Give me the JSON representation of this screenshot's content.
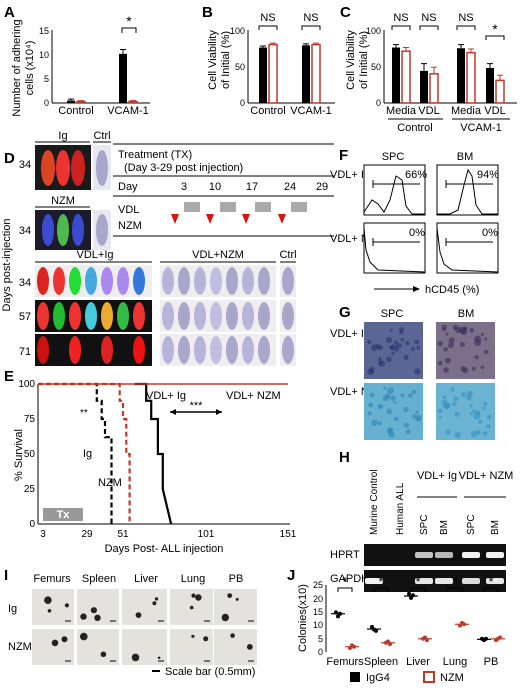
{
  "panels": {
    "A": {
      "letter": "A"
    },
    "B": {
      "letter": "B"
    },
    "C": {
      "letter": "C"
    },
    "D": {
      "letter": "D"
    },
    "E": {
      "letter": "E"
    },
    "F": {
      "letter": "F"
    },
    "G": {
      "letter": "G"
    },
    "H": {
      "letter": "H"
    },
    "I": {
      "letter": "I"
    },
    "J": {
      "letter": "J"
    }
  },
  "chart_data": [
    {
      "panel": "A",
      "type": "bar",
      "ylabel": "Number of adhering cells (x10⁴)",
      "ylim": [
        0,
        15
      ],
      "yticks": [
        0,
        5,
        10,
        15
      ],
      "categories": [
        "Control",
        "VCAM-1"
      ],
      "series": [
        {
          "color": "#000000",
          "values": [
            0.5,
            10.1
          ],
          "err": [
            0.3,
            0.9
          ]
        },
        {
          "color": "#c0392b",
          "values": [
            0.3,
            0.3
          ],
          "err": [
            0.2,
            0.2
          ]
        }
      ],
      "annotations": [
        "*"
      ]
    },
    {
      "panel": "B",
      "type": "bar",
      "ylabel": "Cell Viability of Initial (%)",
      "ylim": [
        0,
        100
      ],
      "yticks": [
        0,
        50,
        100
      ],
      "categories": [
        "Control",
        "VCAM-1"
      ],
      "series": [
        {
          "color": "#000000",
          "values": [
            76,
            79
          ],
          "err": [
            2,
            2
          ]
        },
        {
          "color": "#c0392b",
          "values": [
            80,
            80
          ],
          "err": [
            2,
            2
          ]
        }
      ],
      "annotations": [
        "NS",
        "NS"
      ]
    },
    {
      "panel": "C",
      "type": "bar",
      "ylabel": "Cell Viability of Initial (%)",
      "ylim": [
        0,
        100
      ],
      "yticks": [
        0,
        50,
        100
      ],
      "categories": [
        "Media",
        "VDL",
        "Media",
        "VDL"
      ],
      "groups": [
        "Control",
        "VCAM-1"
      ],
      "series": [
        {
          "color": "#000000",
          "values": [
            76,
            44,
            75,
            48
          ],
          "err": [
            4,
            10,
            5,
            6
          ]
        },
        {
          "color": "#c0392b",
          "values": [
            71,
            40,
            69,
            31
          ],
          "err": [
            5,
            9,
            5,
            7
          ]
        }
      ],
      "annotations": [
        "NS",
        "NS",
        "NS",
        "*"
      ]
    },
    {
      "panel": "E",
      "type": "line",
      "ylabel": "% Survival",
      "xlabel": "Days Post- ALL injection",
      "ylim": [
        0,
        100
      ],
      "yticks": [
        0,
        25,
        50,
        75,
        100
      ],
      "xticks": [
        3,
        29,
        51,
        101,
        151
      ],
      "series": [
        {
          "name": "Ig",
          "color": "#000000",
          "style": "dashed",
          "x": [
            0,
            35,
            35,
            38,
            38,
            40,
            40,
            44,
            44
          ],
          "y": [
            100,
            100,
            88,
            88,
            75,
            75,
            62,
            62,
            0
          ]
        },
        {
          "name": "NZM",
          "color": "#c0392b",
          "style": "dashed",
          "x": [
            0,
            49,
            49,
            51,
            51,
            53,
            53,
            55,
            55
          ],
          "y": [
            100,
            100,
            88,
            88,
            75,
            75,
            50,
            50,
            0
          ]
        },
        {
          "name": "VDL+Ig",
          "color": "#000000",
          "style": "solid",
          "x": [
            58,
            65,
            65,
            68,
            68,
            72,
            72,
            75,
            75,
            80
          ],
          "y": [
            100,
            100,
            88,
            88,
            75,
            75,
            50,
            50,
            25,
            0
          ]
        },
        {
          "name": "VDL+NZM",
          "color": "#c0392b",
          "style": "solid",
          "x": [
            0,
            151
          ],
          "y": [
            100,
            100
          ]
        }
      ],
      "annotations": [
        "**",
        "***"
      ],
      "labels": {
        "ig": "Ig",
        "nzm": "NZM",
        "vdl_ig": "VDL+ Ig",
        "vdl_nzm": "VDL+ NZM",
        "tx": "Tx"
      }
    },
    {
      "panel": "J",
      "type": "scatter",
      "ylabel": "Colonies(x10)",
      "ylim": [
        0,
        25
      ],
      "yticks": [
        0,
        5,
        10,
        15,
        20,
        25
      ],
      "categories": [
        "Femurs",
        "Spleen",
        "Liver",
        "Lung",
        "PB"
      ],
      "series": [
        {
          "name": "IgG4",
          "color": "#000000",
          "values": [
            [
              15,
              13.5,
              14.5
            ],
            [
              9.5,
              8.5,
              8
            ],
            [
              22,
              20.5,
              21.5
            ],
            [
              0,
              0,
              0
            ],
            [
              5,
              4.5,
              5
            ]
          ],
          "mean": [
            14.5,
            8.7,
            21.2,
            0,
            4.8
          ]
        },
        {
          "name": "NZM",
          "color": "#c0392b",
          "values": [
            [
              1.5,
              2.5,
              2
            ],
            [
              3.5,
              4,
              3
            ],
            [
              5,
              5.5,
              4.5
            ],
            [
              10,
              11,
              10.5
            ],
            [
              4.5,
              5,
              5.5
            ]
          ],
          "mean": [
            2,
            3.5,
            5,
            10.5,
            5
          ]
        }
      ],
      "annotations": [
        "*",
        "*",
        "*",
        "*",
        "*"
      ]
    }
  ],
  "A": {
    "cats": [
      "Control",
      "VCAM-1"
    ],
    "ticks": [
      "0",
      "5",
      "10",
      "15"
    ],
    "ylabel_1": "Number of adhering",
    "ylabel_2": "cells (x10⁴)",
    "sig": "*"
  },
  "B": {
    "cats": [
      "Control",
      "VCAM-1"
    ],
    "ticks": [
      "0",
      "50",
      "100"
    ],
    "ylabel_1": "Cell Viability",
    "ylabel_2": "of Initial (%)",
    "sig": [
      "NS",
      "NS"
    ]
  },
  "C": {
    "cats": [
      "Media",
      "VDL",
      "Media",
      "VDL"
    ],
    "groups": [
      "Control",
      "VCAM-1"
    ],
    "ticks": [
      "0",
      "50",
      "100"
    ],
    "ylabel_1": "Cell Viability",
    "ylabel_2": "of Initial (%)",
    "sig": [
      "NS",
      "NS",
      "NS",
      "*"
    ]
  },
  "D": {
    "top_labels": [
      "Ig",
      "Ctrl",
      "NZM"
    ],
    "treatment_title": "Treatment (TX)",
    "treatment_sub": "(Day 3-29 post injection)",
    "day_label": "Day",
    "days": [
      "3",
      "10",
      "17",
      "24",
      "29"
    ],
    "rows": [
      "VDL",
      "NZM"
    ],
    "groups": [
      "VDL+Ig",
      "VDL+NZM",
      "Ctrl"
    ],
    "row_days": [
      "34",
      "57",
      "71"
    ],
    "top_days": [
      "34",
      "34"
    ],
    "side": "Days post-injection"
  },
  "E": {
    "xlabel": "Days Post- ALL injection",
    "ylabel": "% Survival",
    "xticks": [
      "3",
      "29",
      "51",
      "101",
      "151"
    ],
    "yticks": [
      "0",
      "25",
      "50",
      "75",
      "100"
    ]
  },
  "F": {
    "cols": [
      "SPC",
      "BM"
    ],
    "rows": [
      "VDL+ Ig",
      "VDL+ NZM"
    ],
    "pcts": [
      "66%",
      "94%",
      "0%",
      "0%"
    ],
    "xlabel": "hCD45 (%)"
  },
  "G": {
    "cols": [
      "SPC",
      "BM"
    ],
    "rows": [
      "VDL+ Ig",
      "VDL+ NZM"
    ]
  },
  "H": {
    "lanes": [
      "Murine Control",
      "Human ALL",
      "SPC",
      "BM",
      "SPC",
      "BM"
    ],
    "groups": [
      "VDL+ Ig",
      "VDL+ NZM"
    ],
    "rows": [
      "HPRT",
      "GAPDH"
    ]
  },
  "I": {
    "cols": [
      "Femurs",
      "Spleen",
      "Liver",
      "Lung",
      "PB"
    ],
    "rows": [
      "Ig",
      "NZM"
    ],
    "scale": "Scale bar (0.5mm)"
  },
  "J": {
    "cats": [
      "Femurs",
      "Spleen",
      "Liver",
      "Lung",
      "PB"
    ],
    "ticks": [
      "0",
      "5",
      "10",
      "15",
      "20",
      "25"
    ],
    "ylabel": "Colonies(x10)",
    "legend": [
      "IgG4",
      "NZM"
    ]
  }
}
